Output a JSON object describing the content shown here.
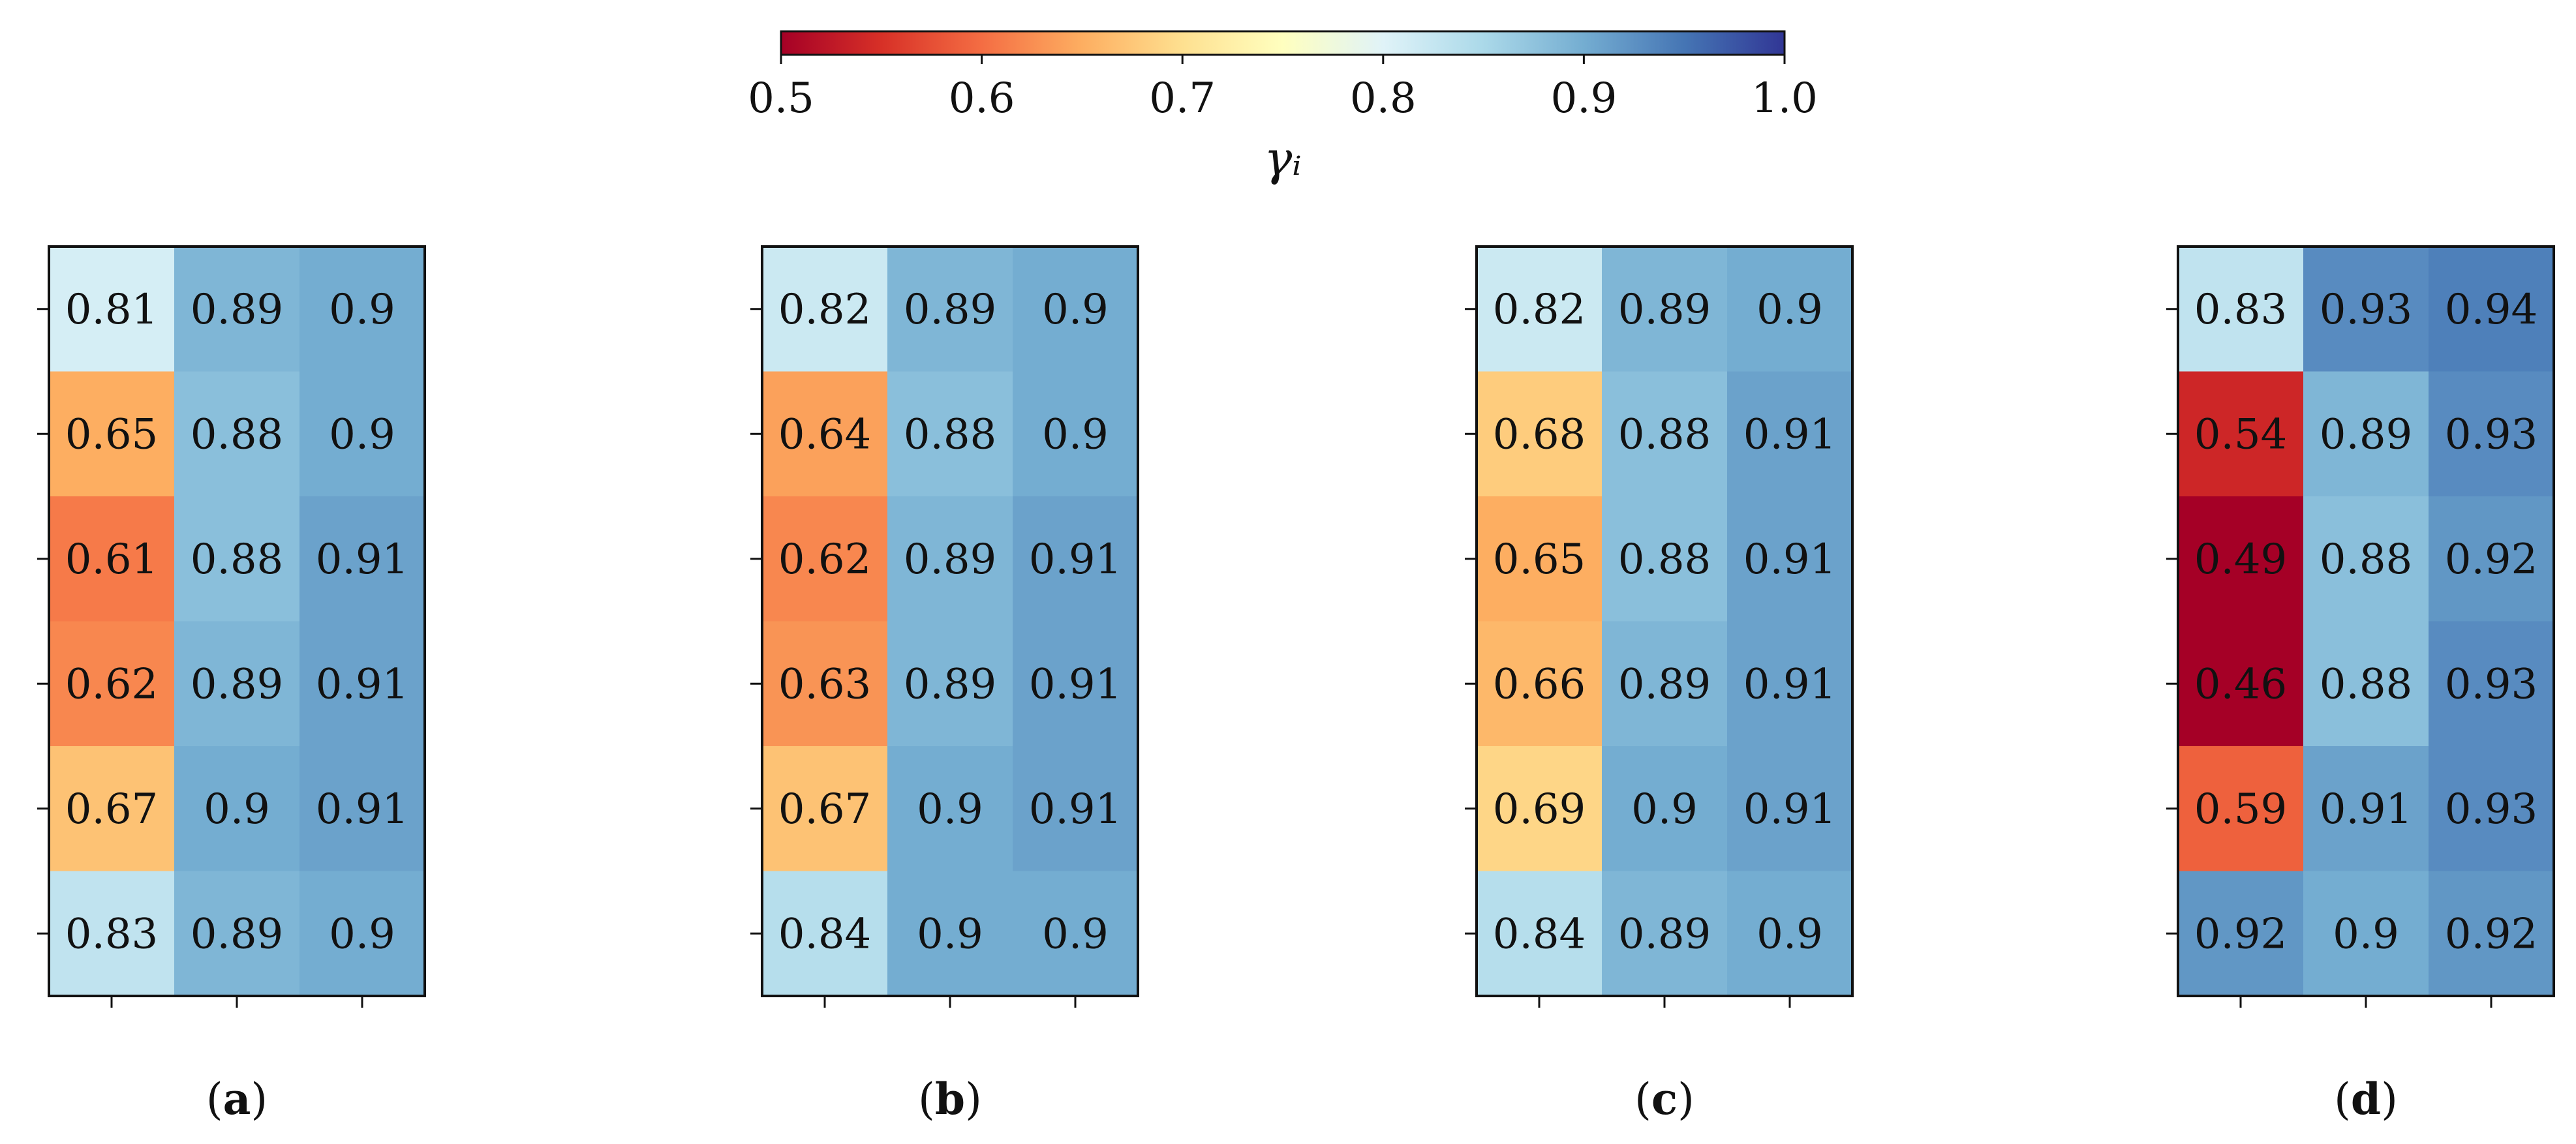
{
  "chart_data": {
    "type": "heatmap",
    "colorbar": {
      "label": "γᵢ",
      "range": [
        0.5,
        1.0
      ],
      "ticks": [
        "0.5",
        "0.6",
        "0.7",
        "0.8",
        "0.9",
        "1.0"
      ],
      "colormap": "RdYlBu"
    },
    "panels": [
      {
        "label_open": "(",
        "label_letter": "a",
        "label_close": ")",
        "values": [
          [
            0.81,
            0.89,
            0.9
          ],
          [
            0.65,
            0.88,
            0.9
          ],
          [
            0.61,
            0.88,
            0.91
          ],
          [
            0.62,
            0.89,
            0.91
          ],
          [
            0.67,
            0.9,
            0.91
          ],
          [
            0.83,
            0.89,
            0.9
          ]
        ],
        "labels": [
          [
            "0.81",
            "0.89",
            "0.9"
          ],
          [
            "0.65",
            "0.88",
            "0.9"
          ],
          [
            "0.61",
            "0.88",
            "0.91"
          ],
          [
            "0.62",
            "0.89",
            "0.91"
          ],
          [
            "0.67",
            "0.9",
            "0.91"
          ],
          [
            "0.83",
            "0.89",
            "0.9"
          ]
        ]
      },
      {
        "label_open": "(",
        "label_letter": "b",
        "label_close": ")",
        "values": [
          [
            0.82,
            0.89,
            0.9
          ],
          [
            0.64,
            0.88,
            0.9
          ],
          [
            0.62,
            0.89,
            0.91
          ],
          [
            0.63,
            0.89,
            0.91
          ],
          [
            0.67,
            0.9,
            0.91
          ],
          [
            0.84,
            0.9,
            0.9
          ]
        ],
        "labels": [
          [
            "0.82",
            "0.89",
            "0.9"
          ],
          [
            "0.64",
            "0.88",
            "0.9"
          ],
          [
            "0.62",
            "0.89",
            "0.91"
          ],
          [
            "0.63",
            "0.89",
            "0.91"
          ],
          [
            "0.67",
            "0.9",
            "0.91"
          ],
          [
            "0.84",
            "0.9",
            "0.9"
          ]
        ]
      },
      {
        "label_open": "(",
        "label_letter": "c",
        "label_close": ")",
        "values": [
          [
            0.82,
            0.89,
            0.9
          ],
          [
            0.68,
            0.88,
            0.91
          ],
          [
            0.65,
            0.88,
            0.91
          ],
          [
            0.66,
            0.89,
            0.91
          ],
          [
            0.69,
            0.9,
            0.91
          ],
          [
            0.84,
            0.89,
            0.9
          ]
        ],
        "labels": [
          [
            "0.82",
            "0.89",
            "0.9"
          ],
          [
            "0.68",
            "0.88",
            "0.91"
          ],
          [
            "0.65",
            "0.88",
            "0.91"
          ],
          [
            "0.66",
            "0.89",
            "0.91"
          ],
          [
            "0.69",
            "0.9",
            "0.91"
          ],
          [
            "0.84",
            "0.89",
            "0.9"
          ]
        ]
      },
      {
        "label_open": "(",
        "label_letter": "d",
        "label_close": ")",
        "values": [
          [
            0.83,
            0.93,
            0.94
          ],
          [
            0.54,
            0.89,
            0.93
          ],
          [
            0.49,
            0.88,
            0.92
          ],
          [
            0.46,
            0.88,
            0.93
          ],
          [
            0.59,
            0.91,
            0.93
          ],
          [
            0.92,
            0.9,
            0.92
          ]
        ],
        "labels": [
          [
            "0.83",
            "0.93",
            "0.94"
          ],
          [
            "0.54",
            "0.89",
            "0.93"
          ],
          [
            "0.49",
            "0.88",
            "0.92"
          ],
          [
            "0.46",
            "0.88",
            "0.93"
          ],
          [
            "0.59",
            "0.91",
            "0.93"
          ],
          [
            "0.92",
            "0.9",
            "0.92"
          ]
        ]
      }
    ]
  }
}
